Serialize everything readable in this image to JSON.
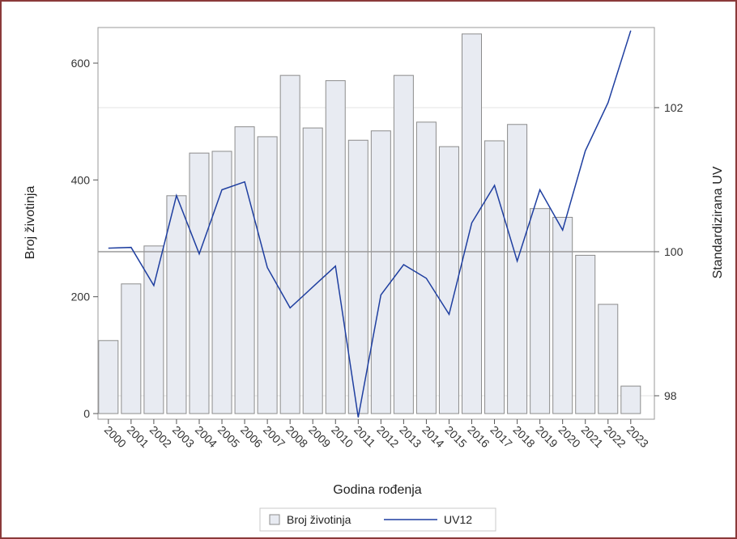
{
  "chart_data": {
    "type": "bar",
    "title": "",
    "xlabel": "Godina rođenja",
    "ylabel": "Broj životinja",
    "y2label": "Standardizirana UV",
    "categories": [
      "2000",
      "2001",
      "2002",
      "2003",
      "2004",
      "2005",
      "2006",
      "2007",
      "2008",
      "2009",
      "2010",
      "2011",
      "2012",
      "2013",
      "2014",
      "2015",
      "2016",
      "2017",
      "2018",
      "2019",
      "2020",
      "2021",
      "2022",
      "2023"
    ],
    "series": [
      {
        "name": "Broj životinja",
        "type": "bar",
        "axis": "left",
        "values": [
          125,
          222,
          287,
          373,
          446,
          449,
          491,
          474,
          579,
          489,
          570,
          468,
          484,
          579,
          499,
          457,
          650,
          467,
          495,
          351,
          336,
          271,
          187,
          47
        ]
      },
      {
        "name": "UV12",
        "type": "line",
        "axis": "right",
        "values": [
          100.05,
          100.06,
          99.53,
          100.78,
          99.97,
          100.86,
          100.97,
          99.78,
          99.22,
          99.51,
          99.8,
          97.7,
          99.4,
          99.82,
          99.63,
          99.13,
          100.4,
          100.92,
          99.87,
          100.86,
          100.3,
          101.4,
          102.07,
          103.07
        ]
      }
    ],
    "ylim": [
      0,
      665
    ],
    "yticks": [
      0,
      200,
      400,
      600
    ],
    "y2lim": [
      97.7,
      103.1
    ],
    "y2ticks": [
      98,
      100,
      102
    ],
    "reference_line_y2": 100,
    "grid_y2": [
      98,
      102
    ],
    "legend_position": "bottom",
    "colors": {
      "bar_fill": "#e8ebf2",
      "bar_stroke": "#8c8c8c",
      "line": "#1f3fa0",
      "refline": "#9a9a9a",
      "grid": "#e3e3e3",
      "frame_border": "#8b3a3a"
    }
  }
}
